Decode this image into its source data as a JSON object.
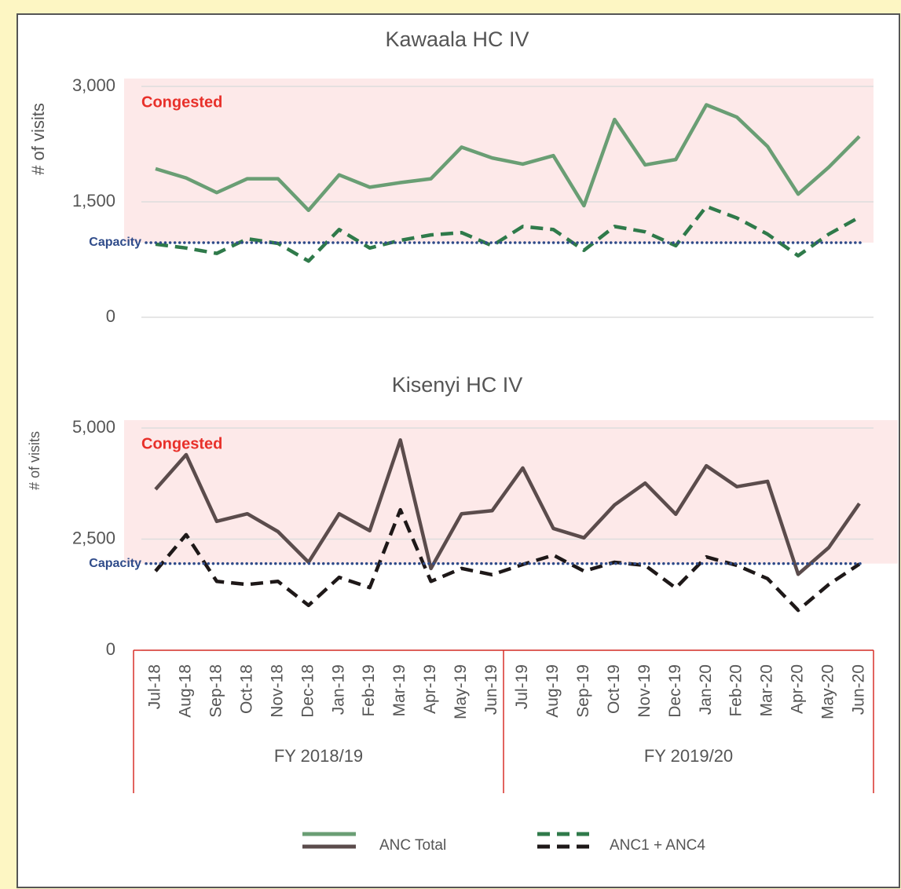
{
  "chart_data": [
    {
      "type": "line",
      "title": "Kawaala HC IV",
      "y_label": "# of visits",
      "ylim": [
        0,
        3000
      ],
      "yticks": [
        0,
        {
          "value": 1500,
          "label": "1,500"
        },
        {
          "value": 3000,
          "label": "3,000"
        }
      ],
      "grid": true,
      "capacity": 970,
      "capacity_label": "Capacity",
      "congested_label": "Congested",
      "series": [
        {
          "name": "ANC Total",
          "color": "#6a9e74",
          "dashed": false,
          "values": [
            1930,
            1810,
            1620,
            1800,
            1800,
            1390,
            1850,
            1690,
            1750,
            1800,
            2210,
            2070,
            1990,
            2100,
            1450,
            2570,
            1980,
            2050,
            2760,
            2600,
            2220,
            1600,
            1950,
            2350
          ]
        },
        {
          "name": "ANC1 +  ANC4",
          "color": "#2f7a4a",
          "dashed": true,
          "values": [
            950,
            900,
            830,
            1020,
            960,
            730,
            1140,
            900,
            1000,
            1070,
            1100,
            930,
            1180,
            1140,
            870,
            1180,
            1110,
            930,
            1440,
            1290,
            1080,
            800,
            1080,
            1300
          ]
        }
      ]
    },
    {
      "type": "line",
      "title": "Kisenyi HC IV",
      "y_label": "# of visits",
      "ylim": [
        0,
        5000
      ],
      "yticks": [
        0,
        {
          "value": 2500,
          "label": "2,500"
        },
        {
          "value": 5000,
          "label": "5,000"
        }
      ],
      "grid": true,
      "capacity": 1950,
      "capacity_label": "Capacity",
      "congested_label": "Congested",
      "categories": [
        "Jul-18",
        "Aug-18",
        "Sep-18",
        "Oct-18",
        "Nov-18",
        "Dec-18",
        "Jan-19",
        "Feb-19",
        "Mar-19",
        "Apr-19",
        "May-19",
        "Jun-19",
        "Jul-19",
        "Aug-19",
        "Sep-19",
        "Oct-19",
        "Nov-19",
        "Dec-19",
        "Jan-20",
        "Feb-20",
        "Mar-20",
        "Apr-20",
        "May-20",
        "Jun-20"
      ],
      "groups": [
        "FY 2018/19",
        "FY 2019/20"
      ],
      "series": [
        {
          "name": "ANC Total",
          "color": "#5b4c4c",
          "dashed": false,
          "values": [
            3620,
            4400,
            2900,
            3070,
            2670,
            1980,
            3070,
            2690,
            4730,
            1840,
            3070,
            3140,
            4100,
            2740,
            2530,
            3270,
            3760,
            3060,
            4150,
            3680,
            3800,
            1710,
            2310,
            3300
          ]
        },
        {
          "name": "ANC1 +  ANC4",
          "color": "#1e1818",
          "dashed": true,
          "values": [
            1780,
            2600,
            1550,
            1480,
            1550,
            1010,
            1640,
            1410,
            3160,
            1550,
            1840,
            1700,
            1930,
            2140,
            1780,
            1980,
            1910,
            1400,
            2100,
            1910,
            1610,
            900,
            1480,
            1940
          ]
        }
      ]
    }
  ]
}
